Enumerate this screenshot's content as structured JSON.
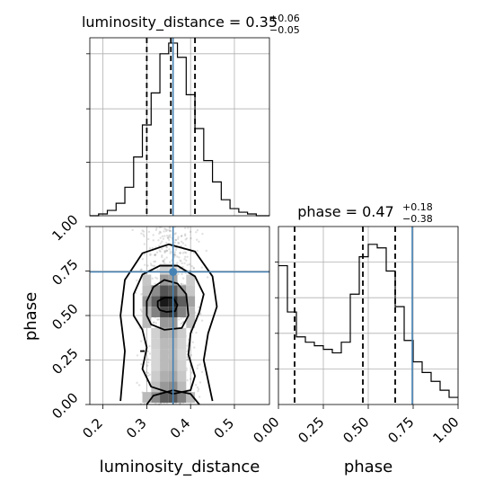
{
  "chart_data": {
    "type": "corner",
    "parameters": [
      "luminosity_distance",
      "phase"
    ],
    "colors": {
      "truth": "#4682b4",
      "line": "#000000",
      "grid": "#b0b0b0"
    },
    "grid": true,
    "truths": {
      "luminosity_distance": 0.36,
      "phase": 0.745
    },
    "panels": {
      "hist_luminosity_distance": {
        "title_base": "luminosity_distance = 0.35",
        "title_sup": "+0.06",
        "title_sub": "−0.05",
        "xlim": [
          0.17,
          0.58
        ],
        "ylim": [
          0,
          1.0
        ],
        "bin_edges": [
          0.17,
          0.19,
          0.21,
          0.23,
          0.25,
          0.27,
          0.29,
          0.31,
          0.33,
          0.35,
          0.37,
          0.39,
          0.41,
          0.43,
          0.45,
          0.47,
          0.49,
          0.51,
          0.53,
          0.55,
          0.57,
          0.58
        ],
        "density": [
          0.0,
          0.01,
          0.03,
          0.07,
          0.16,
          0.33,
          0.51,
          0.69,
          0.91,
          0.97,
          0.89,
          0.68,
          0.49,
          0.31,
          0.19,
          0.09,
          0.04,
          0.02,
          0.01,
          0.0,
          0.0
        ],
        "quantiles": [
          0.3,
          0.355,
          0.41
        ]
      },
      "hist_phase": {
        "title_base": "phase = 0.47",
        "title_sup": "+0.18",
        "title_sub": "−0.38",
        "xlim": [
          0.0,
          1.0
        ],
        "ylim": [
          0,
          1.0
        ],
        "xticks": [
          "0.00",
          "0.25",
          "0.50",
          "0.75",
          "1.00"
        ],
        "xlabel": "phase",
        "bin_edges": [
          0.0,
          0.05,
          0.1,
          0.15,
          0.2,
          0.25,
          0.3,
          0.35,
          0.4,
          0.45,
          0.5,
          0.55,
          0.6,
          0.65,
          0.7,
          0.75,
          0.8,
          0.85,
          0.9,
          0.95,
          1.0
        ],
        "density": [
          0.78,
          0.52,
          0.38,
          0.35,
          0.33,
          0.31,
          0.29,
          0.35,
          0.62,
          0.83,
          0.9,
          0.88,
          0.75,
          0.55,
          0.36,
          0.24,
          0.18,
          0.13,
          0.08,
          0.04
        ],
        "quantiles": [
          0.09,
          0.47,
          0.65
        ]
      },
      "joint": {
        "xlim": [
          0.17,
          0.58
        ],
        "ylim": [
          0.0,
          1.0
        ],
        "xticks": [
          "0.2",
          "0.3",
          "0.4",
          "0.5"
        ],
        "yticks": [
          "0.00",
          "0.25",
          "0.50",
          "0.75",
          "1.00"
        ],
        "xlabel": "luminosity_distance",
        "ylabel": "phase",
        "density_cells": [
          {
            "x": 0.34,
            "y": 0.58,
            "v": 1.0
          },
          {
            "x": 0.36,
            "y": 0.58,
            "v": 0.95
          },
          {
            "x": 0.32,
            "y": 0.58,
            "v": 0.7
          },
          {
            "x": 0.38,
            "y": 0.58,
            "v": 0.7
          },
          {
            "x": 0.34,
            "y": 0.52,
            "v": 0.8
          },
          {
            "x": 0.36,
            "y": 0.52,
            "v": 0.85
          },
          {
            "x": 0.34,
            "y": 0.64,
            "v": 0.75
          },
          {
            "x": 0.36,
            "y": 0.64,
            "v": 0.7
          },
          {
            "x": 0.32,
            "y": 0.52,
            "v": 0.55
          },
          {
            "x": 0.38,
            "y": 0.52,
            "v": 0.55
          },
          {
            "x": 0.32,
            "y": 0.64,
            "v": 0.5
          },
          {
            "x": 0.38,
            "y": 0.64,
            "v": 0.45
          },
          {
            "x": 0.3,
            "y": 0.58,
            "v": 0.45
          },
          {
            "x": 0.4,
            "y": 0.58,
            "v": 0.4
          },
          {
            "x": 0.34,
            "y": 0.7,
            "v": 0.45
          },
          {
            "x": 0.36,
            "y": 0.7,
            "v": 0.4
          },
          {
            "x": 0.34,
            "y": 0.46,
            "v": 0.45
          },
          {
            "x": 0.36,
            "y": 0.46,
            "v": 0.45
          },
          {
            "x": 0.34,
            "y": 0.4,
            "v": 0.35
          },
          {
            "x": 0.36,
            "y": 0.4,
            "v": 0.35
          },
          {
            "x": 0.34,
            "y": 0.34,
            "v": 0.3
          },
          {
            "x": 0.36,
            "y": 0.34,
            "v": 0.3
          },
          {
            "x": 0.34,
            "y": 0.28,
            "v": 0.3
          },
          {
            "x": 0.36,
            "y": 0.28,
            "v": 0.3
          },
          {
            "x": 0.34,
            "y": 0.22,
            "v": 0.3
          },
          {
            "x": 0.36,
            "y": 0.22,
            "v": 0.32
          },
          {
            "x": 0.34,
            "y": 0.16,
            "v": 0.35
          },
          {
            "x": 0.36,
            "y": 0.16,
            "v": 0.38
          },
          {
            "x": 0.34,
            "y": 0.1,
            "v": 0.45
          },
          {
            "x": 0.36,
            "y": 0.1,
            "v": 0.5
          },
          {
            "x": 0.32,
            "y": 0.04,
            "v": 0.5
          },
          {
            "x": 0.34,
            "y": 0.04,
            "v": 0.7
          },
          {
            "x": 0.36,
            "y": 0.04,
            "v": 0.72
          },
          {
            "x": 0.38,
            "y": 0.04,
            "v": 0.55
          },
          {
            "x": 0.3,
            "y": 0.04,
            "v": 0.3
          },
          {
            "x": 0.4,
            "y": 0.04,
            "v": 0.3
          },
          {
            "x": 0.3,
            "y": 0.46,
            "v": 0.3
          },
          {
            "x": 0.4,
            "y": 0.46,
            "v": 0.28
          },
          {
            "x": 0.3,
            "y": 0.7,
            "v": 0.25
          },
          {
            "x": 0.4,
            "y": 0.7,
            "v": 0.22
          },
          {
            "x": 0.32,
            "y": 0.34,
            "v": 0.2
          },
          {
            "x": 0.38,
            "y": 0.34,
            "v": 0.2
          },
          {
            "x": 0.32,
            "y": 0.16,
            "v": 0.22
          },
          {
            "x": 0.38,
            "y": 0.16,
            "v": 0.24
          },
          {
            "x": 0.32,
            "y": 0.22,
            "v": 0.18
          },
          {
            "x": 0.38,
            "y": 0.22,
            "v": 0.2
          },
          {
            "x": 0.32,
            "y": 0.28,
            "v": 0.18
          },
          {
            "x": 0.38,
            "y": 0.28,
            "v": 0.18
          },
          {
            "x": 0.32,
            "y": 0.4,
            "v": 0.2
          },
          {
            "x": 0.38,
            "y": 0.4,
            "v": 0.22
          },
          {
            "x": 0.32,
            "y": 0.1,
            "v": 0.28
          },
          {
            "x": 0.38,
            "y": 0.1,
            "v": 0.3
          },
          {
            "x": 0.3,
            "y": 0.52,
            "v": 0.3
          },
          {
            "x": 0.4,
            "y": 0.52,
            "v": 0.3
          },
          {
            "x": 0.3,
            "y": 0.64,
            "v": 0.28
          },
          {
            "x": 0.4,
            "y": 0.64,
            "v": 0.25
          },
          {
            "x": 0.34,
            "y": 0.76,
            "v": 0.2
          },
          {
            "x": 0.36,
            "y": 0.76,
            "v": 0.18
          }
        ],
        "contour_levels": [
          [
            [
              0.33,
              0.53
            ],
            [
              0.345,
              0.52
            ],
            [
              0.365,
              0.525
            ],
            [
              0.37,
              0.56
            ],
            [
              0.36,
              0.6
            ],
            [
              0.34,
              0.6
            ],
            [
              0.325,
              0.58
            ],
            [
              0.325,
              0.55
            ]
          ],
          [
            [
              0.31,
              0.45
            ],
            [
              0.34,
              0.42
            ],
            [
              0.38,
              0.43
            ],
            [
              0.395,
              0.5
            ],
            [
              0.39,
              0.62
            ],
            [
              0.37,
              0.68
            ],
            [
              0.34,
              0.7
            ],
            [
              0.315,
              0.66
            ],
            [
              0.3,
              0.58
            ],
            [
              0.3,
              0.5
            ]
          ],
          [
            [
              0.29,
              0.2
            ],
            [
              0.31,
              0.1
            ],
            [
              0.36,
              0.06
            ],
            [
              0.4,
              0.08
            ],
            [
              0.41,
              0.16
            ],
            [
              0.395,
              0.28
            ],
            [
              0.4,
              0.4
            ],
            [
              0.42,
              0.52
            ],
            [
              0.43,
              0.62
            ],
            [
              0.41,
              0.72
            ],
            [
              0.37,
              0.78
            ],
            [
              0.33,
              0.78
            ],
            [
              0.29,
              0.73
            ],
            [
              0.27,
              0.62
            ],
            [
              0.27,
              0.5
            ],
            [
              0.29,
              0.42
            ],
            [
              0.3,
              0.32
            ],
            [
              0.29,
              0.2
            ]
          ],
          [
            [
              0.24,
              0.02
            ],
            [
              0.25,
              0.3
            ],
            [
              0.24,
              0.5
            ],
            [
              0.25,
              0.7
            ],
            [
              0.29,
              0.85
            ],
            [
              0.35,
              0.9
            ],
            [
              0.41,
              0.86
            ],
            [
              0.45,
              0.72
            ],
            [
              0.46,
              0.55
            ],
            [
              0.44,
              0.4
            ],
            [
              0.43,
              0.25
            ],
            [
              0.45,
              0.02
            ]
          ],
          [
            [
              0.3,
              0.0
            ],
            [
              0.315,
              0.05
            ],
            [
              0.36,
              0.08
            ],
            [
              0.4,
              0.06
            ],
            [
              0.42,
              0.0
            ]
          ]
        ],
        "extra_contour": [
          [
            0.285,
            0.3
          ],
          [
            0.295,
            0.3
          ]
        ]
      }
    }
  }
}
